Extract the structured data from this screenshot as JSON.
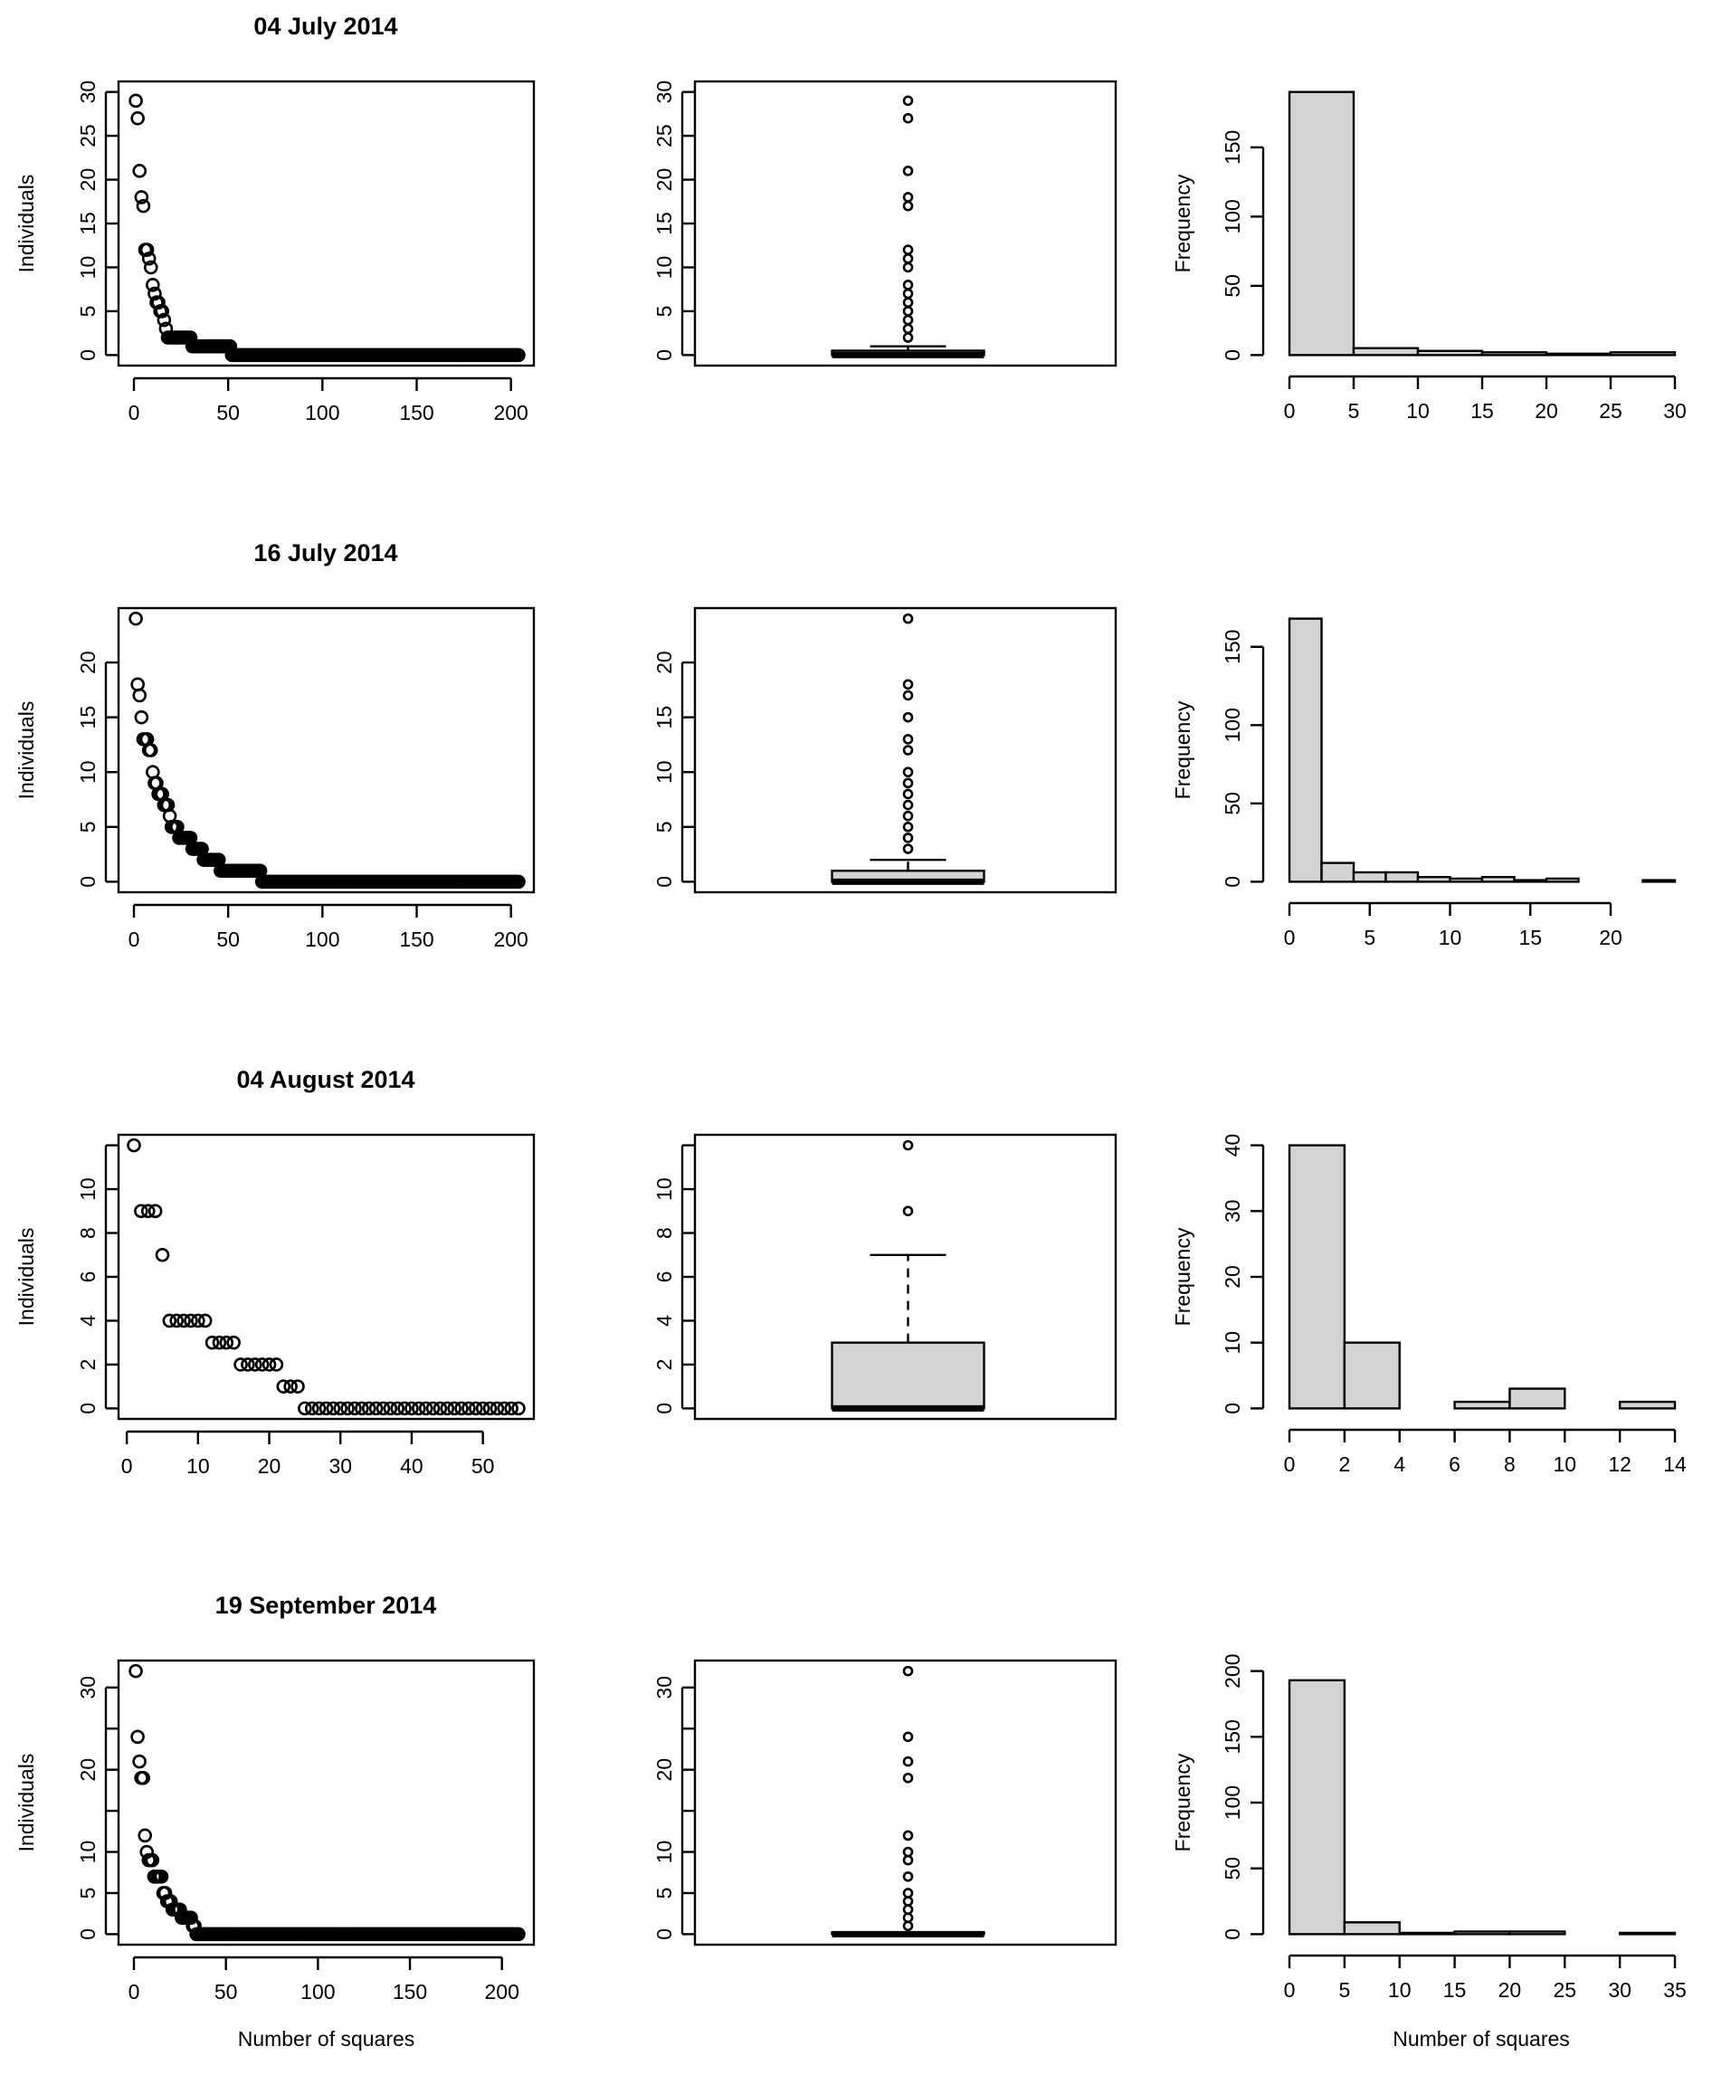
{
  "figure": {
    "shared_labels": {
      "scatter_ylabel": "Individuals",
      "hist_ylabel": "Frequency",
      "bottom_xlabel": "Number of squares"
    }
  },
  "chart_data": [
    {
      "row": 0,
      "title": "04 July 2014",
      "panels": [
        {
          "type": "scatter",
          "ylabel": "Individuals",
          "xlabel": "",
          "xlim": [
            0,
            204
          ],
          "ylim": [
            0,
            30
          ],
          "xticks": [
            "0",
            "50",
            "100",
            "150",
            "200"
          ],
          "xtick_values": [
            0,
            50,
            100,
            150,
            200
          ],
          "yticks": [
            "0",
            "5",
            "10",
            "15",
            "20",
            "25",
            "30"
          ],
          "ytick_values": [
            0,
            5,
            10,
            15,
            20,
            25,
            30
          ],
          "sorted_values_head": [
            29,
            27,
            21,
            18,
            17,
            12,
            12,
            11,
            10,
            8,
            7,
            6,
            6,
            5,
            5,
            4,
            3
          ],
          "runs_after_head": [
            {
              "value": 2,
              "count": 13
            },
            {
              "value": 1,
              "count": 21
            },
            {
              "value": 0,
              "count": 153
            }
          ]
        },
        {
          "type": "boxplot",
          "ylim": [
            0,
            30
          ],
          "yticks": [
            "0",
            "5",
            "10",
            "15",
            "20",
            "25",
            "30"
          ],
          "ytick_values": [
            0,
            5,
            10,
            15,
            20,
            25,
            30
          ],
          "min": 0,
          "q1": 0,
          "median": 0,
          "q3": 0.5,
          "whisker_high": 1,
          "outliers": [
            29,
            27,
            21,
            18,
            17,
            12,
            11,
            10,
            8,
            7,
            6,
            5,
            4,
            3,
            2
          ]
        },
        {
          "type": "histogram",
          "ylabel": "Frequency",
          "xlabel": "",
          "bin_edges": [
            0,
            5,
            10,
            15,
            20,
            25,
            30
          ],
          "counts": [
            190,
            5,
            3,
            2,
            1,
            2
          ],
          "xticks": [
            "0",
            "5",
            "10",
            "15",
            "20",
            "25",
            "30"
          ],
          "xtick_values": [
            0,
            5,
            10,
            15,
            20,
            25,
            30
          ],
          "yticks": [
            "0",
            "50",
            "100",
            "150"
          ],
          "ytick_values": [
            0,
            50,
            100,
            150
          ],
          "ylim": [
            0,
            190
          ]
        }
      ]
    },
    {
      "row": 1,
      "title": "16 July 2014",
      "panels": [
        {
          "type": "scatter",
          "ylabel": "Individuals",
          "xlabel": "",
          "xlim": [
            0,
            204
          ],
          "ylim": [
            0,
            24
          ],
          "xticks": [
            "0",
            "50",
            "100",
            "150",
            "200"
          ],
          "xtick_values": [
            0,
            50,
            100,
            150,
            200
          ],
          "yticks": [
            "0",
            "5",
            "10",
            "15",
            "20"
          ],
          "ytick_values": [
            0,
            5,
            10,
            15,
            20
          ],
          "sorted_values_head": [
            24,
            18,
            17,
            15,
            13,
            13,
            13,
            12,
            12,
            10,
            9,
            9,
            8,
            8,
            8,
            7,
            7,
            7,
            6,
            5,
            5,
            5,
            5
          ],
          "runs_after_head": [
            {
              "value": 4,
              "count": 7
            },
            {
              "value": 3,
              "count": 6
            },
            {
              "value": 2,
              "count": 9
            },
            {
              "value": 1,
              "count": 22
            },
            {
              "value": 0,
              "count": 137
            }
          ]
        },
        {
          "type": "boxplot",
          "ylim": [
            0,
            24
          ],
          "yticks": [
            "0",
            "5",
            "10",
            "15",
            "20"
          ],
          "ytick_values": [
            0,
            5,
            10,
            15,
            20
          ],
          "min": 0,
          "q1": 0,
          "median": 0,
          "q3": 1,
          "whisker_high": 2,
          "outliers": [
            24,
            18,
            17,
            15,
            13,
            12,
            10,
            9,
            8,
            7,
            6,
            5,
            4,
            3
          ]
        },
        {
          "type": "histogram",
          "ylabel": "Frequency",
          "xlabel": "",
          "bin_edges": [
            0,
            2,
            4,
            6,
            8,
            10,
            12,
            14,
            16,
            18,
            20,
            22,
            24
          ],
          "counts": [
            168,
            12,
            6,
            6,
            3,
            2,
            3,
            1,
            2,
            0,
            0,
            1
          ],
          "xticks": [
            "0",
            "5",
            "10",
            "15",
            "20"
          ],
          "xtick_values": [
            0,
            5,
            10,
            15,
            20
          ],
          "yticks": [
            "0",
            "50",
            "100",
            "150"
          ],
          "ytick_values": [
            0,
            50,
            100,
            150
          ],
          "ylim": [
            0,
            168
          ]
        }
      ]
    },
    {
      "row": 2,
      "title": "04 August 2014",
      "panels": [
        {
          "type": "scatter",
          "ylabel": "Individuals",
          "xlabel": "",
          "xlim": [
            1,
            55
          ],
          "ylim": [
            0,
            12
          ],
          "xticks": [
            "0",
            "10",
            "20",
            "30",
            "40",
            "50"
          ],
          "xtick_values": [
            0,
            10,
            20,
            30,
            40,
            50
          ],
          "yticks": [
            "0",
            "2",
            "4",
            "6",
            "8",
            "10",
            ""
          ],
          "ytick_values": [
            0,
            2,
            4,
            6,
            8,
            10,
            12
          ],
          "sorted_values_head": [
            12,
            9,
            9,
            9,
            7,
            4,
            4,
            4,
            4,
            4,
            4,
            3,
            3,
            3,
            3,
            2,
            2,
            2,
            2,
            2,
            2,
            1,
            1,
            1
          ],
          "runs_after_head": [
            {
              "value": 0,
              "count": 31
            }
          ]
        },
        {
          "type": "boxplot",
          "ylim": [
            0,
            12
          ],
          "yticks": [
            "0",
            "2",
            "4",
            "6",
            "8",
            "10",
            ""
          ],
          "ytick_values": [
            0,
            2,
            4,
            6,
            8,
            10,
            12
          ],
          "min": 0,
          "q1": 0,
          "median": 0,
          "q3": 3,
          "whisker_high": 7,
          "outliers": [
            12,
            9
          ]
        },
        {
          "type": "histogram",
          "ylabel": "Frequency",
          "xlabel": "",
          "bin_edges": [
            0,
            2,
            4,
            6,
            8,
            10,
            12,
            14
          ],
          "counts": [
            40,
            10,
            0,
            1,
            3,
            0,
            1
          ],
          "xticks": [
            "0",
            "2",
            "4",
            "6",
            "8",
            "10",
            "12",
            "14"
          ],
          "xtick_values": [
            0,
            2,
            4,
            6,
            8,
            10,
            12,
            14
          ],
          "yticks": [
            "0",
            "10",
            "20",
            "30",
            "40"
          ],
          "ytick_values": [
            0,
            10,
            20,
            30,
            40
          ],
          "ylim": [
            0,
            40
          ]
        }
      ]
    },
    {
      "row": 3,
      "title": "19 September 2014",
      "panels": [
        {
          "type": "scatter",
          "ylabel": "Individuals",
          "xlabel": "Number of squares",
          "xlim": [
            0,
            209
          ],
          "ylim": [
            0,
            32
          ],
          "xticks": [
            "0",
            "50",
            "100",
            "150",
            "200"
          ],
          "xtick_values": [
            0,
            50,
            100,
            150,
            200
          ],
          "yticks": [
            "0",
            "5",
            "10",
            "",
            "20",
            "",
            "30"
          ],
          "ytick_values": [
            0,
            5,
            10,
            15,
            20,
            25,
            30
          ],
          "sorted_values_head": [
            32,
            24,
            21,
            19,
            19,
            12,
            10,
            9,
            9,
            9,
            7,
            7,
            7,
            7,
            7,
            5,
            5,
            4,
            4,
            4
          ],
          "runs_after_head": [
            {
              "value": 3,
              "count": 5
            },
            {
              "value": 2,
              "count": 6
            },
            {
              "value": 1,
              "count": 2
            },
            {
              "value": 0,
              "count": 176
            }
          ]
        },
        {
          "type": "boxplot",
          "ylim": [
            0,
            32
          ],
          "yticks": [
            "0",
            "5",
            "10",
            "",
            "20",
            "",
            "30"
          ],
          "ytick_values": [
            0,
            5,
            10,
            15,
            20,
            25,
            30
          ],
          "min": 0,
          "q1": 0,
          "median": 0,
          "q3": 0,
          "whisker_high": 0,
          "outliers": [
            32,
            24,
            21,
            19,
            12,
            10,
            9,
            7,
            5,
            4,
            3,
            2,
            1
          ]
        },
        {
          "type": "histogram",
          "ylabel": "Frequency",
          "xlabel": "Number of squares",
          "bin_edges": [
            0,
            5,
            10,
            15,
            20,
            25,
            30,
            35
          ],
          "counts": [
            193,
            9,
            1,
            2,
            2,
            0,
            1
          ],
          "xticks": [
            "0",
            "5",
            "10",
            "15",
            "20",
            "25",
            "30",
            "35"
          ],
          "xtick_values": [
            0,
            5,
            10,
            15,
            20,
            25,
            30,
            35
          ],
          "yticks": [
            "0",
            "50",
            "100",
            "150",
            "200"
          ],
          "ytick_values": [
            0,
            50,
            100,
            150,
            200
          ],
          "ylim": [
            0,
            200
          ]
        }
      ]
    }
  ]
}
